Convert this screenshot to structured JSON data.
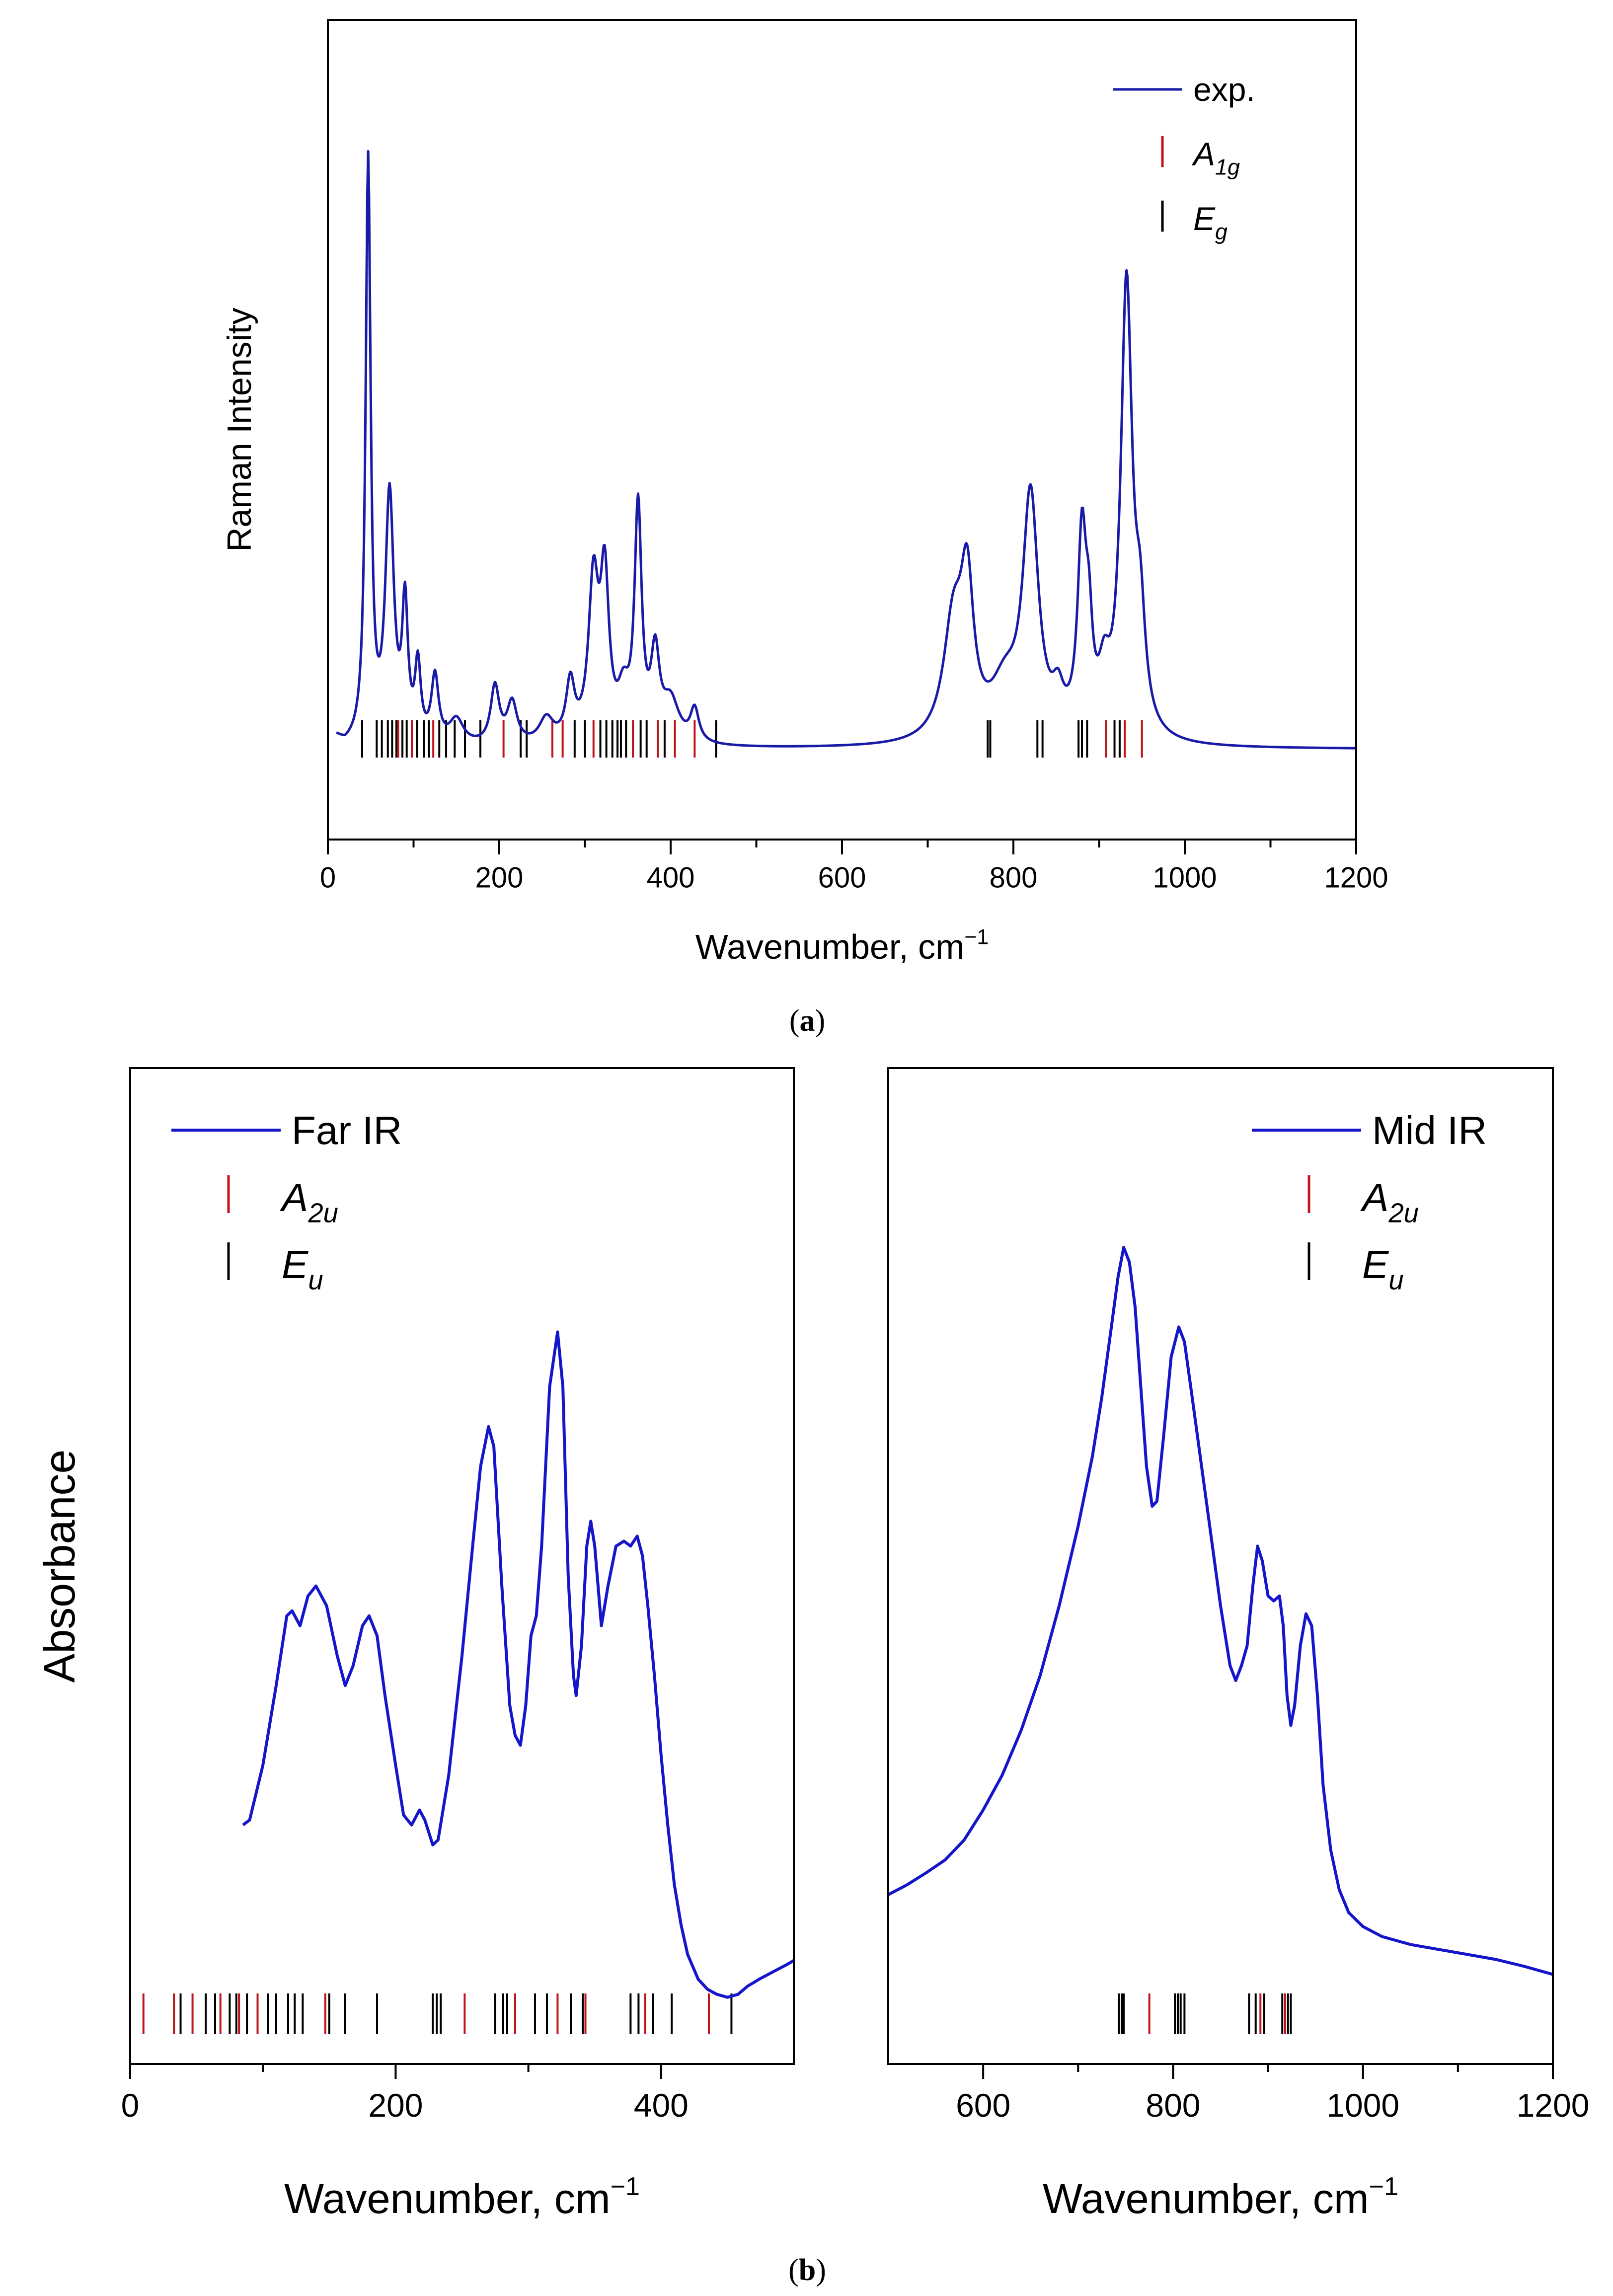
{
  "colors": {
    "curve": "#1a1aa8",
    "irCurve": "#1515cc",
    "a_mode": "#c0141c",
    "e_mode": "#000000",
    "frame": "#000000"
  },
  "chart_data": [
    {
      "id": "raman",
      "type": "line",
      "caption": "(a)",
      "xlabel": "Wavenumber, cm",
      "xlabel_sup": "−1",
      "ylabel": "Raman Intensity",
      "xlim": [
        0,
        1200
      ],
      "ylim": [
        0,
        1.0
      ],
      "xticks": [
        0,
        200,
        400,
        600,
        800,
        1000,
        1200
      ],
      "xticklabels": [
        "0",
        "200",
        "400",
        "600",
        "800",
        "1000",
        "1200"
      ],
      "minor_step": 100,
      "legend": {
        "position": "top-right",
        "items": [
          {
            "kind": "line",
            "label": "exp.",
            "sub": ""
          },
          {
            "kind": "A",
            "label": "A",
            "sub": "1g"
          },
          {
            "kind": "E",
            "label": "E",
            "sub": "g"
          }
        ]
      },
      "series": [
        {
          "name": "exp.",
          "baseline": 0.11,
          "x_range": [
            10,
            1200
          ],
          "peaks": [
            [
              47,
              0.71,
              3.5
            ],
            [
              72,
              0.3,
              6
            ],
            [
              90,
              0.16,
              4
            ],
            [
              105,
              0.09,
              4
            ],
            [
              125,
              0.08,
              5
            ],
            [
              150,
              0.03,
              10
            ],
            [
              195,
              0.07,
              6
            ],
            [
              215,
              0.05,
              7
            ],
            [
              255,
              0.03,
              10
            ],
            [
              283,
              0.07,
              6
            ],
            [
              310,
              0.19,
              7
            ],
            [
              323,
              0.19,
              6
            ],
            [
              345,
              0.05,
              8
            ],
            [
              362,
              0.28,
              5
            ],
            [
              382,
              0.1,
              6
            ],
            [
              400,
              0.05,
              12
            ],
            [
              428,
              0.04,
              6
            ],
            [
              730,
              0.14,
              14
            ],
            [
              746,
              0.17,
              9
            ],
            [
              790,
              0.06,
              20
            ],
            [
              820,
              0.29,
              11
            ],
            [
              852,
              0.04,
              8
            ],
            [
              880,
              0.23,
              6
            ],
            [
              888,
              0.1,
              5
            ],
            [
              906,
              0.06,
              8
            ],
            [
              932,
              0.55,
              8
            ],
            [
              948,
              0.12,
              7
            ]
          ]
        }
      ],
      "ticks_A": [
        205,
        262,
        274,
        310,
        356,
        385,
        405,
        428,
        908,
        930,
        950,
        82,
        98,
        123
      ],
      "ticks_E": [
        40,
        57,
        63,
        70,
        75,
        80,
        87,
        92,
        104,
        112,
        118,
        130,
        138,
        148,
        160,
        178,
        225,
        232,
        288,
        300,
        318,
        325,
        332,
        338,
        342,
        348,
        365,
        372,
        393,
        453,
        770,
        773,
        828,
        834,
        876,
        880,
        886,
        918,
        924
      ],
      "ticks_y": 0.1
    },
    {
      "id": "far-ir",
      "type": "line",
      "xlabel": "Wavenumber, cm",
      "xlabel_sup": "−1",
      "ylabel": "Absorbance",
      "xlim": [
        0,
        500
      ],
      "ylim": [
        0,
        1.0
      ],
      "xticks": [
        0,
        200,
        400
      ],
      "xticklabels": [
        "0",
        "200",
        "400"
      ],
      "minor_step": 100,
      "legend": {
        "position": "top-left",
        "items": [
          {
            "kind": "line",
            "label": "Far IR",
            "sub": ""
          },
          {
            "kind": "A",
            "label": "A",
            "sub": "2u"
          },
          {
            "kind": "E",
            "label": "E",
            "sub": "u"
          }
        ]
      },
      "series": [
        {
          "name": "Far IR",
          "points": [
            [
              85,
              0.24
            ],
            [
              90,
              0.245
            ],
            [
              100,
              0.3
            ],
            [
              110,
              0.38
            ],
            [
              118,
              0.45
            ],
            [
              122,
              0.455
            ],
            [
              128,
              0.44
            ],
            [
              134,
              0.47
            ],
            [
              140,
              0.48
            ],
            [
              148,
              0.46
            ],
            [
              156,
              0.41
            ],
            [
              162,
              0.38
            ],
            [
              168,
              0.4
            ],
            [
              175,
              0.44
            ],
            [
              180,
              0.45
            ],
            [
              186,
              0.43
            ],
            [
              192,
              0.37
            ],
            [
              200,
              0.3
            ],
            [
              206,
              0.25
            ],
            [
              212,
              0.24
            ],
            [
              218,
              0.255
            ],
            [
              222,
              0.245
            ],
            [
              228,
              0.22
            ],
            [
              232,
              0.225
            ],
            [
              240,
              0.29
            ],
            [
              250,
              0.41
            ],
            [
              258,
              0.52
            ],
            [
              264,
              0.6
            ],
            [
              270,
              0.64
            ],
            [
              274,
              0.62
            ],
            [
              280,
              0.48
            ],
            [
              286,
              0.36
            ],
            [
              290,
              0.33
            ],
            [
              294,
              0.32
            ],
            [
              298,
              0.36
            ],
            [
              302,
              0.43
            ],
            [
              306,
              0.45
            ],
            [
              310,
              0.52
            ],
            [
              316,
              0.68
            ],
            [
              322,
              0.735
            ],
            [
              326,
              0.68
            ],
            [
              330,
              0.49
            ],
            [
              334,
              0.39
            ],
            [
              336,
              0.37
            ],
            [
              340,
              0.42
            ],
            [
              344,
              0.52
            ],
            [
              347,
              0.545
            ],
            [
              350,
              0.52
            ],
            [
              355,
              0.44
            ],
            [
              360,
              0.48
            ],
            [
              366,
              0.52
            ],
            [
              372,
              0.525
            ],
            [
              377,
              0.52
            ],
            [
              382,
              0.53
            ],
            [
              386,
              0.51
            ],
            [
              390,
              0.46
            ],
            [
              395,
              0.39
            ],
            [
              400,
              0.31
            ],
            [
              405,
              0.24
            ],
            [
              410,
              0.18
            ],
            [
              415,
              0.14
            ],
            [
              420,
              0.11
            ],
            [
              428,
              0.085
            ],
            [
              435,
              0.075
            ],
            [
              442,
              0.07
            ],
            [
              450,
              0.067
            ],
            [
              458,
              0.07
            ],
            [
              465,
              0.078
            ],
            [
              475,
              0.086
            ],
            [
              485,
              0.093
            ],
            [
              495,
              0.1
            ],
            [
              500,
              0.104
            ]
          ]
        }
      ],
      "ticks_A": [
        10,
        33,
        47,
        68,
        82,
        96,
        147,
        252,
        290,
        322,
        343,
        388,
        436
      ],
      "ticks_E": [
        38,
        57,
        64,
        75,
        80,
        88,
        104,
        110,
        119,
        124,
        130,
        150,
        162,
        186,
        228,
        231,
        234,
        275,
        281,
        284,
        305,
        314,
        332,
        341,
        377,
        383,
        394,
        408,
        453
      ],
      "ticks_y": 0.03
    },
    {
      "id": "mid-ir",
      "type": "line",
      "caption": "(b)",
      "xlabel": "Wavenumber, cm",
      "xlabel_sup": "−1",
      "ylabel": "",
      "xlim": [
        500,
        1200
      ],
      "ylim": [
        0,
        1.0
      ],
      "xticks": [
        600,
        800,
        1000,
        1200
      ],
      "xticklabels": [
        "600",
        "800",
        "1000",
        "1200"
      ],
      "minor_step": 100,
      "legend": {
        "position": "top-right",
        "items": [
          {
            "kind": "line",
            "label": "Mid IR",
            "sub": ""
          },
          {
            "kind": "A",
            "label": "A",
            "sub": "2u"
          },
          {
            "kind": "E",
            "label": "E",
            "sub": "u"
          }
        ]
      },
      "series": [
        {
          "name": "Mid IR",
          "points": [
            [
              500,
              0.17
            ],
            [
              520,
              0.18
            ],
            [
              540,
              0.192
            ],
            [
              560,
              0.205
            ],
            [
              580,
              0.225
            ],
            [
              600,
              0.255
            ],
            [
              620,
              0.29
            ],
            [
              640,
              0.335
            ],
            [
              660,
              0.39
            ],
            [
              680,
              0.46
            ],
            [
              700,
              0.54
            ],
            [
              715,
              0.61
            ],
            [
              725,
              0.67
            ],
            [
              735,
              0.74
            ],
            [
              742,
              0.79
            ],
            [
              748,
              0.82
            ],
            [
              754,
              0.805
            ],
            [
              760,
              0.76
            ],
            [
              766,
              0.68
            ],
            [
              772,
              0.6
            ],
            [
              778,
              0.56
            ],
            [
              783,
              0.565
            ],
            [
              790,
              0.63
            ],
            [
              798,
              0.71
            ],
            [
              806,
              0.74
            ],
            [
              812,
              0.725
            ],
            [
              820,
              0.67
            ],
            [
              830,
              0.6
            ],
            [
              840,
              0.53
            ],
            [
              850,
              0.46
            ],
            [
              860,
              0.4
            ],
            [
              866,
              0.385
            ],
            [
              872,
              0.4
            ],
            [
              878,
              0.42
            ],
            [
              884,
              0.48
            ],
            [
              889,
              0.52
            ],
            [
              894,
              0.505
            ],
            [
              900,
              0.47
            ],
            [
              906,
              0.465
            ],
            [
              912,
              0.47
            ],
            [
              916,
              0.44
            ],
            [
              920,
              0.37
            ],
            [
              924,
              0.34
            ],
            [
              928,
              0.36
            ],
            [
              934,
              0.42
            ],
            [
              940,
              0.452
            ],
            [
              946,
              0.44
            ],
            [
              952,
              0.37
            ],
            [
              958,
              0.28
            ],
            [
              966,
              0.215
            ],
            [
              975,
              0.175
            ],
            [
              985,
              0.152
            ],
            [
              1000,
              0.138
            ],
            [
              1020,
              0.128
            ],
            [
              1050,
              0.12
            ],
            [
              1080,
              0.115
            ],
            [
              1110,
              0.11
            ],
            [
              1140,
              0.105
            ],
            [
              1170,
              0.098
            ],
            [
              1200,
              0.09
            ]
          ]
        }
      ],
      "ticks_A": [
        775,
        892,
        918
      ],
      "ticks_E": [
        743,
        746,
        748,
        802,
        805,
        808,
        812,
        880,
        887,
        896,
        915,
        921,
        924
      ],
      "ticks_y": 0.03
    }
  ]
}
